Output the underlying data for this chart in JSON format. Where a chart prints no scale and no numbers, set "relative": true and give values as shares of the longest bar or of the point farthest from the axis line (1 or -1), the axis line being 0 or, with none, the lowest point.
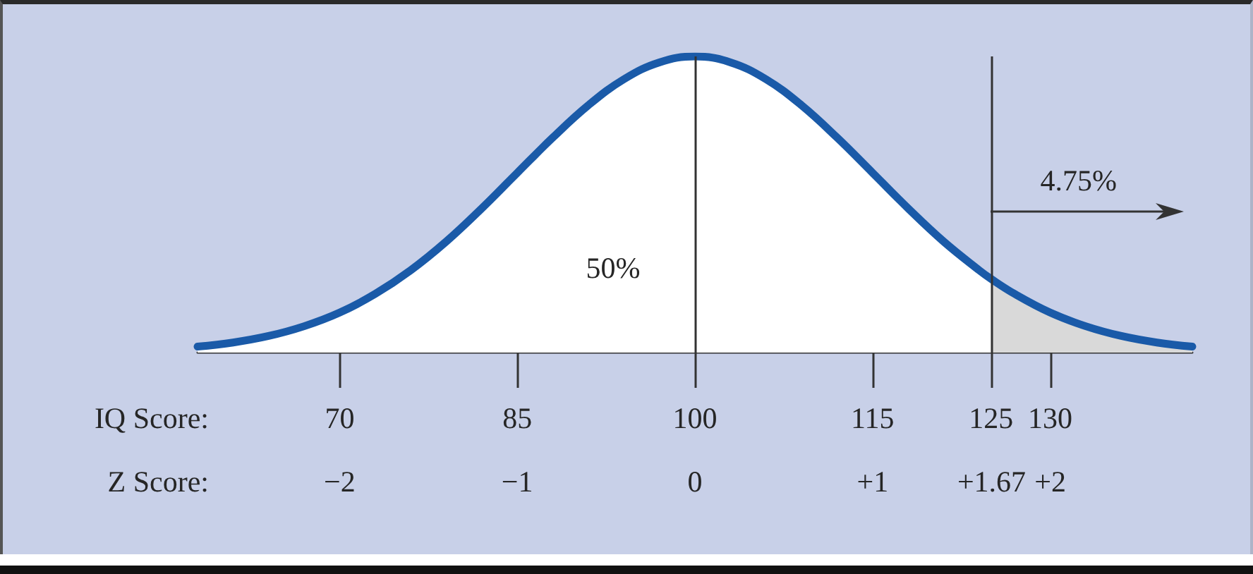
{
  "chart_data": {
    "type": "area",
    "relative": true,
    "xlabel": "IQ Score:",
    "x2label": "Z Score:",
    "x": [
      58,
      61,
      64,
      67,
      70,
      73,
      76,
      79,
      82,
      85,
      88,
      91,
      94,
      97,
      100,
      103,
      106,
      109,
      112,
      115,
      118,
      121,
      124,
      125,
      127,
      130,
      133,
      136,
      139,
      142
    ],
    "series": [
      {
        "color": "#1a5aa8",
        "values": [
          0.02,
          0.034,
          0.056,
          0.089,
          0.135,
          0.198,
          0.278,
          0.375,
          0.487,
          0.607,
          0.726,
          0.835,
          0.923,
          0.98,
          1,
          0.98,
          0.923,
          0.835,
          0.726,
          0.607,
          0.487,
          0.375,
          0.278,
          0.249,
          0.198,
          0.135,
          0.089,
          0.056,
          0.034,
          0.02
        ]
      },
      {
        "color": "#d9d9d9",
        "x": [
          125,
          127,
          130,
          133,
          136,
          139,
          142
        ],
        "values": [
          0.249,
          0.198,
          0.135,
          0.089,
          0.056,
          0.034,
          0.02
        ]
      }
    ],
    "xlim": [
      58,
      142
    ],
    "xticks": [
      70,
      85,
      100,
      115,
      125,
      130
    ],
    "x2lim": [
      -2.8,
      2.8
    ],
    "x2ticks": [
      {
        "value": -2,
        "label": "−2"
      },
      {
        "value": -1,
        "label": "−1"
      },
      0,
      {
        "value": 1,
        "label": "+1"
      },
      {
        "value": 1.67,
        "label": "+1.67"
      },
      {
        "value": 2,
        "label": "+2"
      }
    ],
    "ref_lines": [
      {
        "axis": "x",
        "value": 100,
        "color": "#333333"
      },
      {
        "axis": "x",
        "value": 125,
        "color": "#333333"
      }
    ],
    "annotations": [
      "50%",
      "4.75%"
    ]
  }
}
